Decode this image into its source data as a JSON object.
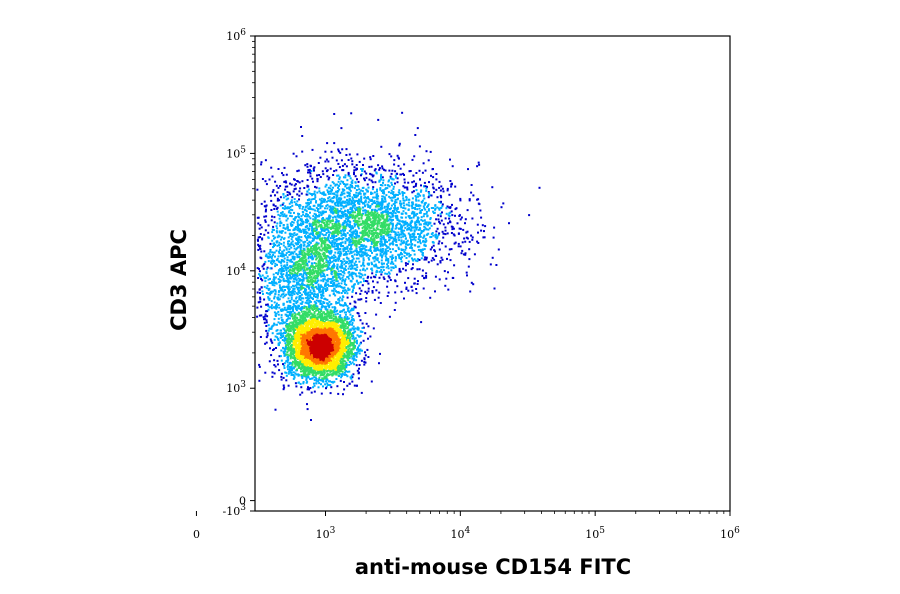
{
  "chart_data": {
    "type": "scatter",
    "subtype": "flow-cytometry density dot plot",
    "xlabel": "anti-mouse CD154 FITC",
    "ylabel": "CD3 APC",
    "x_scale": "biexponential",
    "y_scale": "biexponential",
    "xlim": [
      -300,
      1000000
    ],
    "ylim": [
      -1000,
      1000000
    ],
    "x_ticks": [
      {
        "value": 0,
        "base": "0",
        "exp": ""
      },
      {
        "value": 1000,
        "base": "10",
        "exp": "3"
      },
      {
        "value": 10000,
        "base": "10",
        "exp": "4"
      },
      {
        "value": 100000,
        "base": "10",
        "exp": "5"
      },
      {
        "value": 1000000,
        "base": "10",
        "exp": "6"
      }
    ],
    "y_ticks": [
      {
        "value": -1000,
        "base": "-10",
        "exp": "3"
      },
      {
        "value": 0,
        "base": "0",
        "exp": ""
      },
      {
        "value": 1000,
        "base": "10",
        "exp": "3"
      },
      {
        "value": 10000,
        "base": "10",
        "exp": "4"
      },
      {
        "value": 100000,
        "base": "10",
        "exp": "5"
      },
      {
        "value": 1000000,
        "base": "10",
        "exp": "6"
      }
    ],
    "grid": false,
    "legend": "none",
    "colormap": [
      "#0000cc",
      "#00b0ff",
      "#33dd66",
      "#ffee00",
      "#ff7700",
      "#cc0000"
    ],
    "populations": [
      {
        "center_x": 900,
        "center_y": 2300,
        "spread_x_decades": 0.12,
        "spread_y_decades": 0.13,
        "weight": 0.42
      },
      {
        "center_x": 1800,
        "center_y": 25000,
        "spread_x_decades": 0.35,
        "spread_y_decades": 0.25,
        "weight": 0.38
      },
      {
        "center_x": 700,
        "center_y": 7000,
        "spread_x_decades": 0.2,
        "spread_y_decades": 0.3,
        "weight": 0.2
      }
    ]
  }
}
